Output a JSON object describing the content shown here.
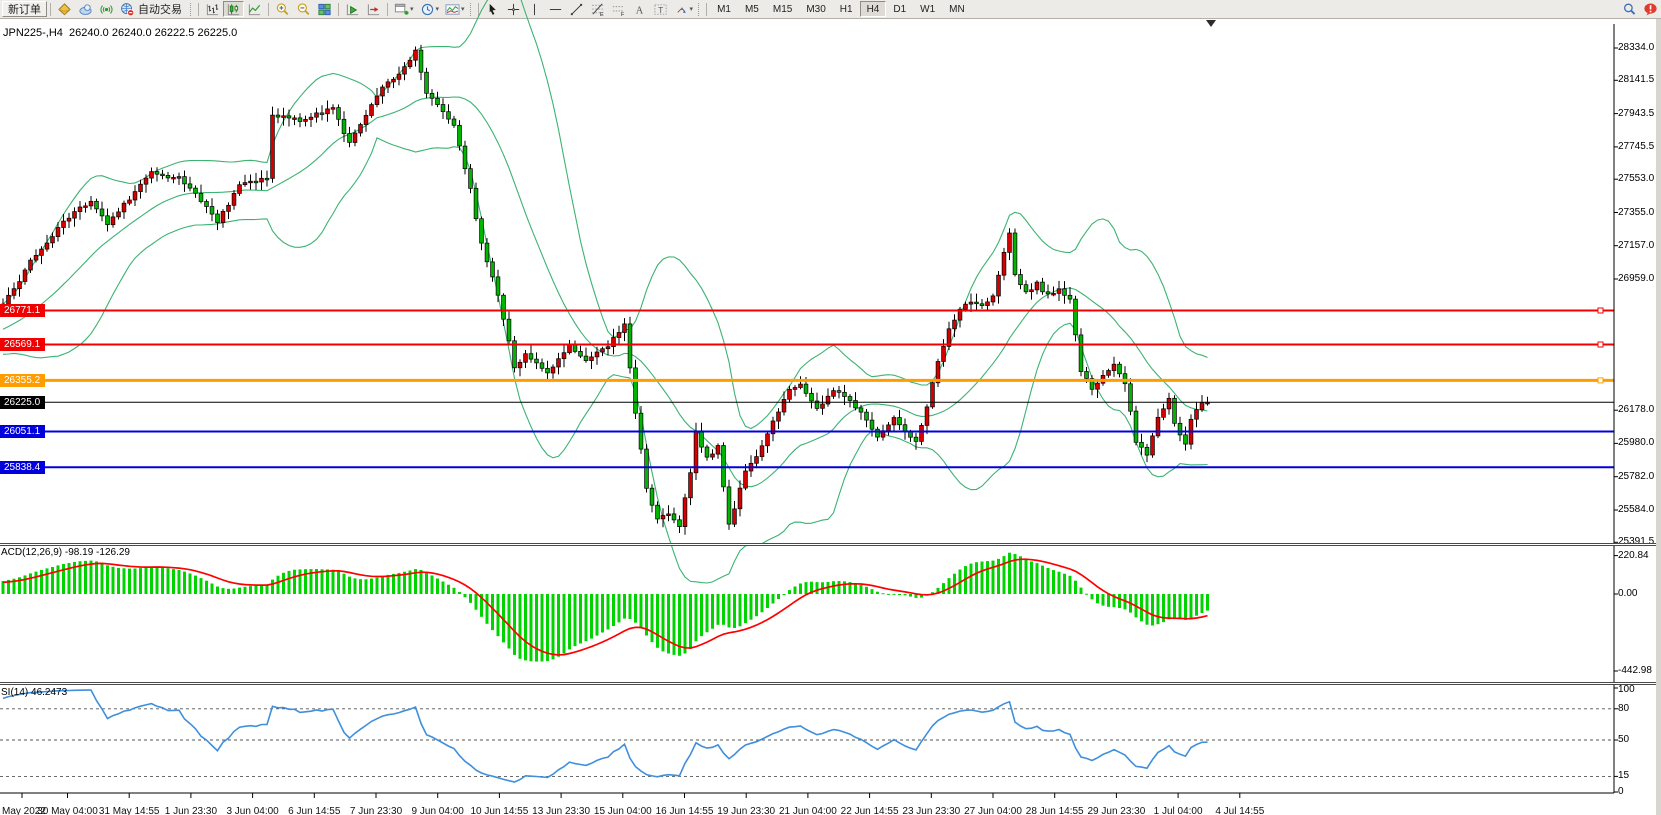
{
  "toolbar": {
    "new_order": {
      "label": "新订单"
    },
    "autotrading": {
      "label": "自动交易"
    },
    "icons_left": [
      "gem-icon",
      "cloud-user-icon",
      "signal-icon"
    ],
    "icons_chart_type": [
      "bar-chart-icon",
      "candlestick-chart-icon",
      "line-chart-icon"
    ],
    "active_chart_type": "candlestick-chart-icon",
    "icons_zoom": [
      "zoom-in-icon",
      "zoom-out-icon",
      "tile-windows-icon"
    ],
    "icons_scroll": [
      "auto-scroll-icon",
      "chart-shift-icon"
    ],
    "icons_new": [
      "new-chart-icon",
      "profiles-clock-icon",
      "indicator-list-icon"
    ],
    "icons_draw": [
      "cursor-icon",
      "crosshair-icon",
      "vertical-line-icon",
      "horizontal-line-icon",
      "trend-line-icon",
      "fibonacci-icon",
      "equidistant-channel-icon",
      "text-icon",
      "text-label-icon",
      "arrows-icon"
    ],
    "timeframes": [
      "M1",
      "M5",
      "M15",
      "M30",
      "H1",
      "H4",
      "D1",
      "W1",
      "MN"
    ],
    "active_timeframe": "H4",
    "icons_right": [
      "search-icon",
      "notification-icon"
    ]
  },
  "chart": {
    "title": "JPN225-,H4  26240.0 26240.0 26222.5 26225.0",
    "symbol": "JPN225-",
    "period": "H4",
    "open": "26240.0",
    "high": "26240.0",
    "low": "26222.5",
    "close": "26225.0"
  },
  "chart_data": {
    "type": "candlestick",
    "symbol": "JPN225-",
    "timeframe": "H4",
    "candle_count": 220,
    "bullish_color": "#d40000",
    "bearish_color": "#00b400",
    "note": "Chinese color convention: red = up candles, green = down candles",
    "close_anchors": [
      [
        0,
        26800
      ],
      [
        5,
        27060
      ],
      [
        11,
        27300
      ],
      [
        16,
        27430
      ],
      [
        19,
        27290
      ],
      [
        27,
        27590
      ],
      [
        32,
        27560
      ],
      [
        36,
        27430
      ],
      [
        39,
        27300
      ],
      [
        43,
        27510
      ],
      [
        48,
        27560
      ],
      [
        49,
        27930
      ],
      [
        55,
        27900
      ],
      [
        60,
        27990
      ],
      [
        63,
        27760
      ],
      [
        68,
        28060
      ],
      [
        72,
        28180
      ],
      [
        75,
        28310
      ],
      [
        77,
        28060
      ],
      [
        82,
        27880
      ],
      [
        85,
        27490
      ],
      [
        87,
        27160
      ],
      [
        90,
        26860
      ],
      [
        93,
        26440
      ],
      [
        95,
        26510
      ],
      [
        99,
        26390
      ],
      [
        103,
        26560
      ],
      [
        106,
        26480
      ],
      [
        110,
        26560
      ],
      [
        113,
        26680
      ],
      [
        115,
        26160
      ],
      [
        117,
        25710
      ],
      [
        119,
        25530
      ],
      [
        121,
        25570
      ],
      [
        123,
        25490
      ],
      [
        125,
        25800
      ],
      [
        126,
        26050
      ],
      [
        128,
        25890
      ],
      [
        130,
        25960
      ],
      [
        132,
        25490
      ],
      [
        135,
        25810
      ],
      [
        137,
        25910
      ],
      [
        140,
        26110
      ],
      [
        143,
        26300
      ],
      [
        145,
        26330
      ],
      [
        148,
        26190
      ],
      [
        151,
        26290
      ],
      [
        154,
        26240
      ],
      [
        156,
        26160
      ],
      [
        159,
        26010
      ],
      [
        162,
        26130
      ],
      [
        164,
        26040
      ],
      [
        166,
        25990
      ],
      [
        168,
        26210
      ],
      [
        170,
        26460
      ],
      [
        172,
        26660
      ],
      [
        174,
        26770
      ],
      [
        176,
        26830
      ],
      [
        178,
        26790
      ],
      [
        180,
        26850
      ],
      [
        182,
        27130
      ],
      [
        183,
        27240
      ],
      [
        184,
        26990
      ],
      [
        186,
        26880
      ],
      [
        188,
        26930
      ],
      [
        190,
        26860
      ],
      [
        192,
        26900
      ],
      [
        194,
        26830
      ],
      [
        196,
        26410
      ],
      [
        198,
        26310
      ],
      [
        200,
        26390
      ],
      [
        202,
        26460
      ],
      [
        204,
        26340
      ],
      [
        206,
        25990
      ],
      [
        208,
        25910
      ],
      [
        210,
        26130
      ],
      [
        212,
        26240
      ],
      [
        213,
        26110
      ],
      [
        215,
        25970
      ],
      [
        216,
        26130
      ],
      [
        218,
        26210
      ],
      [
        219,
        26225
      ]
    ],
    "price_axis_ticks": [
      {
        "label": "28334.0",
        "price": 28334.0
      },
      {
        "label": "28141.5",
        "price": 28141.5
      },
      {
        "label": "27943.5",
        "price": 27943.5
      },
      {
        "label": "27745.5",
        "price": 27745.5
      },
      {
        "label": "27553.0",
        "price": 27553.0
      },
      {
        "label": "27355.0",
        "price": 27355.0
      },
      {
        "label": "27157.0",
        "price": 27157.0
      },
      {
        "label": "26959.0",
        "price": 26959.0
      },
      {
        "label": "26178.0",
        "price": 26178.0
      },
      {
        "label": "25980.0",
        "price": 25980.0
      },
      {
        "label": "25782.0",
        "price": 25782.0
      },
      {
        "label": "25584.0",
        "price": 25584.0
      },
      {
        "label": "25391.5",
        "price": 25391.5
      }
    ],
    "level_lines": [
      {
        "label": "26771.1",
        "price": 26771.1,
        "color": "#f00000",
        "width": 2,
        "handle": true
      },
      {
        "label": "26569.1",
        "price": 26569.1,
        "color": "#f00000",
        "width": 2,
        "handle": true
      },
      {
        "label": "26355.2",
        "price": 26355.2,
        "color": "#ff9c00",
        "width": 3,
        "handle": true
      },
      {
        "label": "26225.0",
        "price": 26225.0,
        "color": "#000000",
        "width": 1,
        "handle": false
      },
      {
        "label": "26051.1",
        "price": 26051.1,
        "color": "#0000dc",
        "width": 2,
        "handle": false
      },
      {
        "label": "25838.4",
        "price": 25838.4,
        "color": "#0000dc",
        "width": 2,
        "handle": false
      }
    ],
    "bollinger": {
      "period": 20,
      "deviation": 2,
      "color": "#3cb371"
    },
    "macd": {
      "label": "ACD(12,26,9) -98.19 -126.29",
      "fast": 12,
      "slow": 26,
      "signal_period": 9,
      "main_value": -98.19,
      "signal_value": -126.29,
      "histogram_color": "#00d400",
      "signal_color": "#ff0000",
      "axis_ticks": [
        {
          "label": "220.84",
          "value": 220.84
        },
        {
          "label": "0.00",
          "value": 0
        },
        {
          "label": "-442.98",
          "value": -442.98
        }
      ]
    },
    "rsi": {
      "label": "SI(14) 46.2473",
      "period": 14,
      "value": 46.2473,
      "color": "#3f8fdd",
      "levels": [
        80,
        50,
        15
      ],
      "axis_ticks": [
        {
          "label": "100",
          "value": 100
        },
        {
          "label": "80",
          "value": 80
        },
        {
          "label": "50",
          "value": 50
        },
        {
          "label": "15",
          "value": 15
        },
        {
          "label": "0",
          "value": 0
        }
      ]
    },
    "time_labels": [
      "May 2022",
      "30 May 04:00",
      "31 May 14:55",
      "1 Jun 23:30",
      "3 Jun 04:00",
      "6 Jun 14:55",
      "7 Jun 23:30",
      "9 Jun 04:00",
      "10 Jun 14:55",
      "13 Jun 23:30",
      "15 Jun 04:00",
      "16 Jun 14:55",
      "19 Jun 23:30",
      "21 Jun 04:00",
      "22 Jun 14:55",
      "23 Jun 23:30",
      "27 Jun 04:00",
      "28 Jun 14:55",
      "29 Jun 23:30",
      "1 Jul 04:00",
      "4 Jul 14:55"
    ]
  }
}
